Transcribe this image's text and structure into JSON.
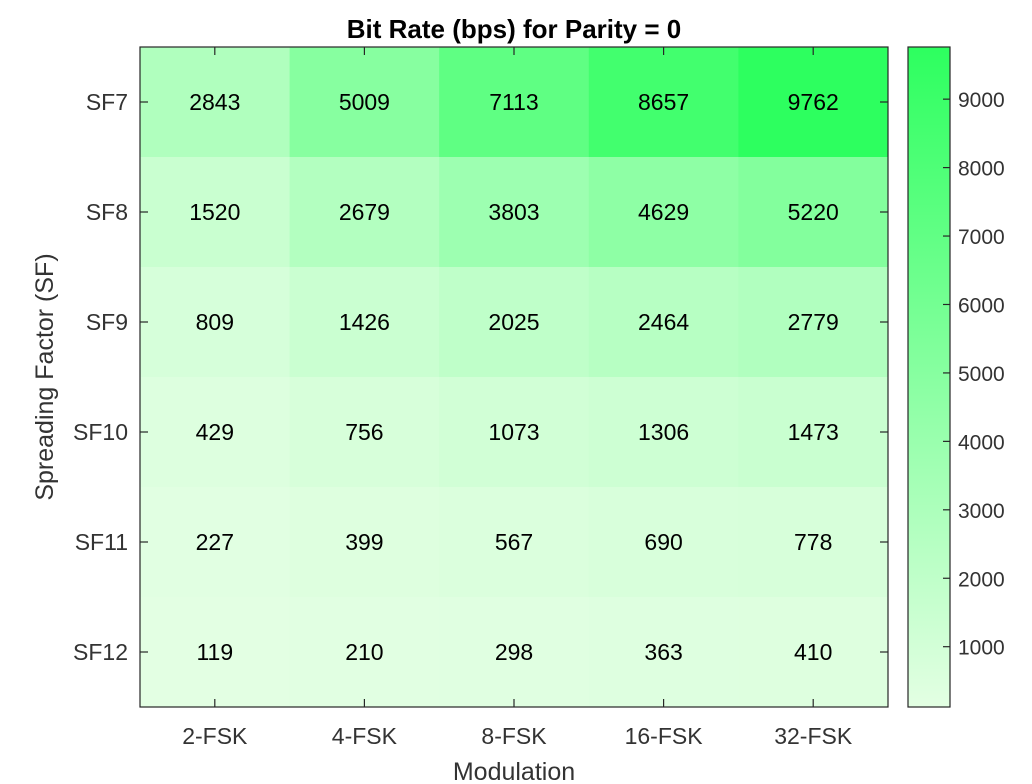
{
  "chart_data": {
    "type": "heatmap",
    "title": "Bit Rate (bps) for Parity = 0",
    "xlabel": "Modulation",
    "ylabel": "Spreading Factor (SF)",
    "x_categories": [
      "2-FSK",
      "4-FSK",
      "8-FSK",
      "16-FSK",
      "32-FSK"
    ],
    "y_categories": [
      "SF7",
      "SF8",
      "SF9",
      "SF10",
      "SF11",
      "SF12"
    ],
    "values": [
      [
        2843,
        5009,
        7113,
        8657,
        9762
      ],
      [
        1520,
        2679,
        3803,
        4629,
        5220
      ],
      [
        809,
        1426,
        2025,
        2464,
        2779
      ],
      [
        429,
        756,
        1073,
        1306,
        1473
      ],
      [
        227,
        399,
        567,
        690,
        778
      ],
      [
        119,
        210,
        298,
        363,
        410
      ]
    ],
    "colorbar": {
      "range": [
        119,
        9762
      ],
      "ticks": [
        1000,
        2000,
        3000,
        4000,
        5000,
        6000,
        7000,
        8000,
        9000
      ],
      "color_low": "#e3ffe3",
      "color_high": "#2dff5f"
    }
  }
}
